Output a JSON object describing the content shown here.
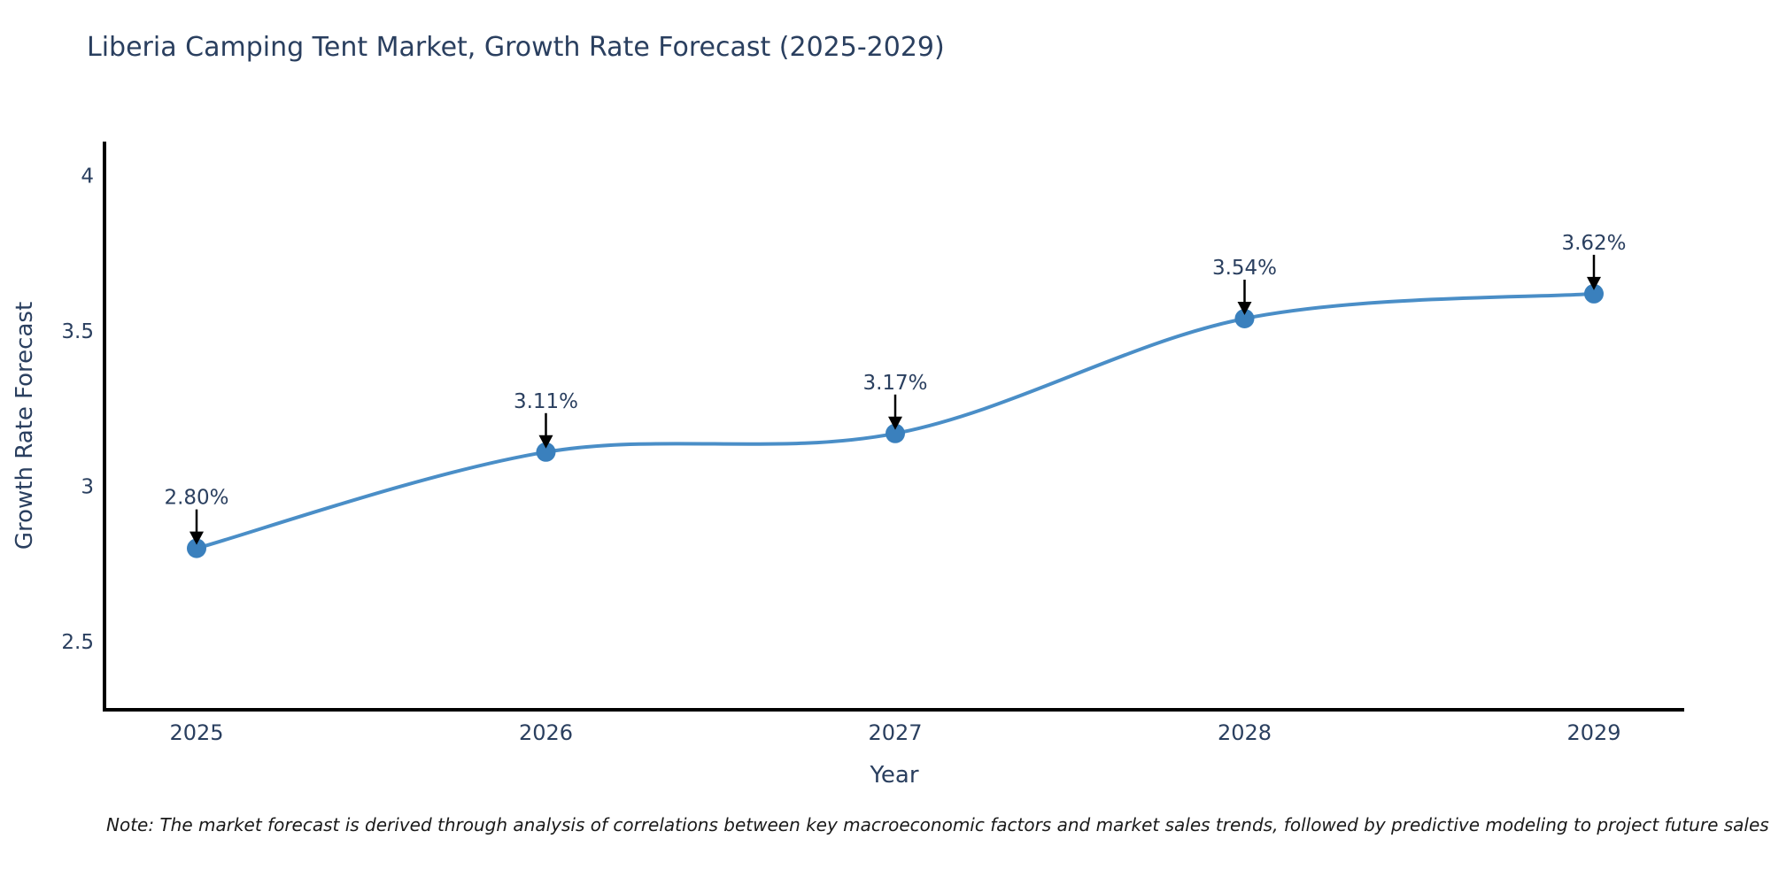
{
  "chart_data": {
    "type": "line",
    "title": "Liberia Camping Tent Market, Growth Rate Forecast (2025-2029)",
    "xlabel": "Year",
    "ylabel": "Growth Rate Forecast",
    "note": "Note: The market forecast is derived through analysis of correlations between key macroeconomic factors and market sales trends, followed by predictive modeling to project future sales",
    "x": [
      "2025",
      "2026",
      "2027",
      "2028",
      "2029"
    ],
    "values": [
      2.8,
      3.11,
      3.17,
      3.54,
      3.62
    ],
    "point_labels": [
      "2.80%",
      "3.11%",
      "3.17%",
      "3.54%",
      "3.62%"
    ],
    "ytick_values": [
      2.5,
      3,
      3.5,
      4
    ],
    "ytick_labels": [
      "2.5",
      "3",
      "3.5",
      "4"
    ],
    "ylim": [
      2.28,
      4.11
    ],
    "line_shape": "spline",
    "grid": false,
    "legend": "none",
    "colors": {
      "line": "#4a8ec7",
      "marker": "#3a80bd",
      "text": "#2a3f5f",
      "axis": "#000000",
      "arrow": "#000000",
      "background": "#ffffff",
      "note_text": "#1a1a1a"
    }
  }
}
